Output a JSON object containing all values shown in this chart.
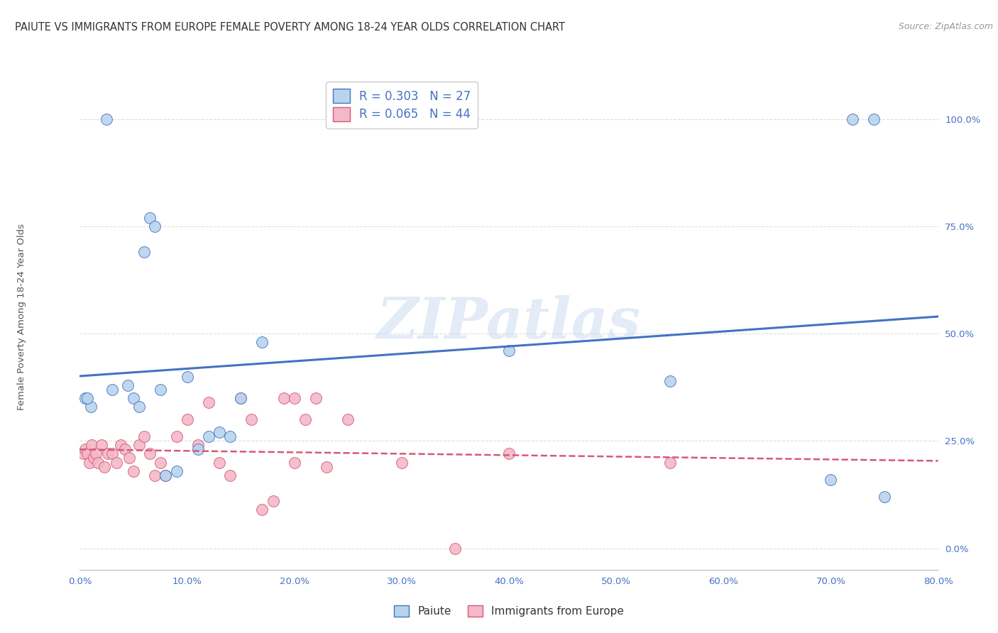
{
  "title": "PAIUTE VS IMMIGRANTS FROM EUROPE FEMALE POVERTY AMONG 18-24 YEAR OLDS CORRELATION CHART",
  "source": "Source: ZipAtlas.com",
  "ylabel": "Female Poverty Among 18-24 Year Olds",
  "xlim": [
    0,
    80
  ],
  "ylim": [
    -5,
    110
  ],
  "paiute_R": 0.303,
  "paiute_N": 27,
  "immigrants_R": 0.065,
  "immigrants_N": 44,
  "paiute_color": "#b8d4ed",
  "paiute_line_color": "#4472c4",
  "immigrants_color": "#f4b8c8",
  "immigrants_line_color": "#d45a7a",
  "watermark_text": "ZIPatlas",
  "watermark_color": "#d0dff0",
  "paiute_x": [
    1.0,
    2.5,
    3.0,
    4.5,
    5.0,
    5.5,
    6.0,
    6.5,
    7.0,
    7.5,
    8.0,
    9.0,
    10.0,
    11.0,
    12.0,
    13.0,
    14.0,
    15.0,
    17.0,
    40.0,
    55.0,
    70.0,
    72.0,
    74.0,
    0.5,
    0.7,
    75.0
  ],
  "paiute_y": [
    33.0,
    100.0,
    37.0,
    38.0,
    35.0,
    33.0,
    69.0,
    77.0,
    75.0,
    37.0,
    17.0,
    18.0,
    40.0,
    23.0,
    26.0,
    27.0,
    26.0,
    35.0,
    48.0,
    46.0,
    39.0,
    16.0,
    100.0,
    100.0,
    35.0,
    35.0,
    12.0
  ],
  "immigrants_x": [
    0.3,
    0.5,
    0.7,
    0.9,
    1.1,
    1.3,
    1.5,
    1.7,
    2.0,
    2.3,
    2.6,
    3.0,
    3.4,
    3.8,
    4.2,
    4.6,
    5.0,
    5.5,
    6.0,
    6.5,
    7.0,
    7.5,
    8.0,
    9.0,
    10.0,
    11.0,
    12.0,
    13.0,
    14.0,
    15.0,
    16.0,
    17.0,
    18.0,
    19.0,
    20.0,
    22.0,
    23.0,
    25.0,
    30.0,
    35.0,
    40.0,
    55.0,
    20.0,
    21.0
  ],
  "immigrants_y": [
    22.0,
    23.0,
    22.0,
    20.0,
    24.0,
    21.0,
    22.0,
    20.0,
    24.0,
    19.0,
    22.0,
    22.0,
    20.0,
    24.0,
    23.0,
    21.0,
    18.0,
    24.0,
    26.0,
    22.0,
    17.0,
    20.0,
    17.0,
    26.0,
    30.0,
    24.0,
    34.0,
    20.0,
    17.0,
    35.0,
    30.0,
    9.0,
    11.0,
    35.0,
    20.0,
    35.0,
    19.0,
    30.0,
    20.0,
    0.0,
    22.0,
    20.0,
    35.0,
    30.0
  ],
  "legend_paiute_label": "Paiute",
  "legend_immigrants_label": "Immigrants from Europe",
  "background_color": "#ffffff",
  "grid_color": "#dddddd",
  "title_fontsize": 10.5,
  "source_fontsize": 9,
  "axis_label_fontsize": 9.5,
  "tick_fontsize": 9.5,
  "legend_fontsize": 12,
  "marker_size": 130,
  "tick_color": "#4472c4"
}
